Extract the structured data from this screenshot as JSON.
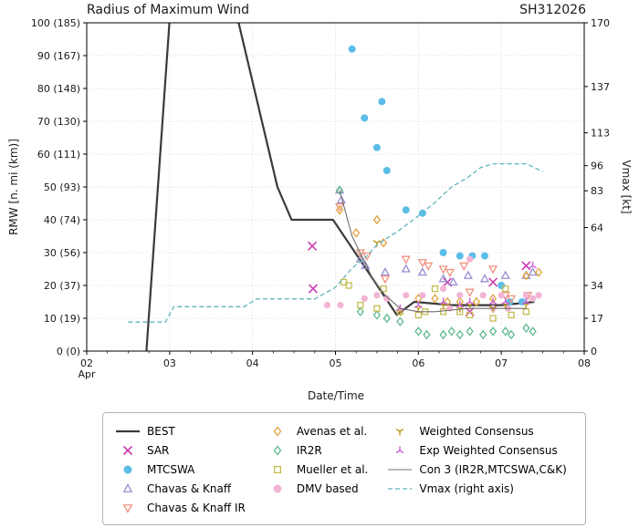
{
  "chart_data": {
    "type": "line+scatter",
    "title": "Radius of Maximum Wind",
    "storm_id": "SH312026",
    "x_axis": {
      "label": "Date/Time",
      "month_label": "Apr",
      "range": [
        2,
        8
      ],
      "ticks": [
        2,
        3,
        4,
        5,
        6,
        7,
        8
      ],
      "tick_labels": [
        "02",
        "03",
        "04",
        "05",
        "06",
        "07",
        "08"
      ],
      "minor_tick_step": 0.25,
      "grid": true
    },
    "y_left": {
      "label": "RMW [n. mi (km)]",
      "range": [
        0,
        100
      ],
      "ticks": [
        0,
        10,
        20,
        30,
        40,
        50,
        60,
        70,
        80,
        90,
        100
      ],
      "tick_labels": [
        "0 (0)",
        "10 (19)",
        "20 (37)",
        "30 (56)",
        "40 (74)",
        "50 (93)",
        "60 (111)",
        "70 (130)",
        "80 (148)",
        "90 (167)",
        "100 (185)"
      ],
      "grid": true
    },
    "y_right": {
      "label": "Vmax [kt]",
      "range": [
        0,
        170
      ],
      "ticks": [
        0,
        17,
        34,
        64,
        83,
        96,
        113,
        137,
        170
      ],
      "tick_labels": [
        "0",
        "17",
        "34",
        "64",
        "83",
        "96",
        "113",
        "137",
        "170"
      ]
    },
    "series": [
      {
        "name": "BEST",
        "style": "line",
        "axis": "left",
        "color": "#3a3a3a",
        "width": 2.2,
        "points": [
          [
            2.72,
            0
          ],
          [
            3.03,
            112
          ],
          [
            3.72,
            112
          ],
          [
            4.3,
            50
          ],
          [
            4.47,
            40
          ],
          [
            4.97,
            40
          ],
          [
            5.45,
            22
          ],
          [
            5.74,
            11
          ],
          [
            5.95,
            15
          ],
          [
            6.4,
            14
          ],
          [
            7.0,
            14
          ],
          [
            7.4,
            15
          ]
        ]
      },
      {
        "name": "SAR",
        "style": "scatter",
        "marker": "x",
        "axis": "left",
        "color": "#cc3bb0",
        "size": 4.5,
        "points": [
          [
            4.72,
            32
          ],
          [
            4.73,
            19
          ],
          [
            6.35,
            21
          ],
          [
            6.62,
            12
          ],
          [
            6.9,
            21
          ],
          [
            7.3,
            26
          ]
        ]
      },
      {
        "name": "MTCSWA",
        "style": "scatter",
        "marker": "circle",
        "axis": "left",
        "color": "#5bbde8",
        "size": 4,
        "points": [
          [
            5.2,
            92
          ],
          [
            5.35,
            71
          ],
          [
            5.5,
            62
          ],
          [
            5.56,
            76
          ],
          [
            5.62,
            55
          ],
          [
            5.85,
            43
          ],
          [
            6.05,
            42
          ],
          [
            6.3,
            30
          ],
          [
            6.5,
            29
          ],
          [
            6.65,
            29
          ],
          [
            6.8,
            29
          ],
          [
            7.0,
            20
          ],
          [
            7.1,
            15
          ],
          [
            7.25,
            15
          ]
        ]
      },
      {
        "name": "Chavas & Knaff",
        "style": "scatter",
        "marker": "triangle-up",
        "axis": "left",
        "color": "#988fd2",
        "size": 4.2,
        "points": [
          [
            5.05,
            49
          ],
          [
            5.07,
            46
          ],
          [
            5.3,
            28
          ],
          [
            5.36,
            26
          ],
          [
            5.6,
            24
          ],
          [
            5.85,
            25
          ],
          [
            6.05,
            24
          ],
          [
            6.3,
            22
          ],
          [
            6.42,
            21
          ],
          [
            6.6,
            23
          ],
          [
            6.8,
            22
          ],
          [
            7.05,
            23
          ],
          [
            7.3,
            23
          ],
          [
            7.38,
            24
          ]
        ]
      },
      {
        "name": "Chavas & Knaff IR",
        "style": "scatter",
        "marker": "triangle-down",
        "axis": "left",
        "color": "#f0917f",
        "size": 4.2,
        "points": [
          [
            5.05,
            44
          ],
          [
            5.3,
            30
          ],
          [
            5.38,
            29
          ],
          [
            5.6,
            22
          ],
          [
            5.85,
            28
          ],
          [
            6.05,
            27
          ],
          [
            6.12,
            26
          ],
          [
            6.3,
            25
          ],
          [
            6.38,
            24
          ],
          [
            6.55,
            26
          ],
          [
            6.62,
            18
          ],
          [
            6.9,
            25
          ],
          [
            7.05,
            17
          ],
          [
            7.12,
            16
          ],
          [
            7.32,
            17
          ]
        ]
      },
      {
        "name": "Avenas et al.",
        "style": "scatter",
        "marker": "diamond",
        "axis": "left",
        "color": "#e2a23b",
        "size": 4.2,
        "points": [
          [
            5.05,
            43
          ],
          [
            5.25,
            36
          ],
          [
            5.5,
            40
          ],
          [
            5.58,
            33
          ],
          [
            6.0,
            16
          ],
          [
            6.2,
            16
          ],
          [
            6.35,
            15
          ],
          [
            6.5,
            15
          ],
          [
            6.7,
            15
          ],
          [
            6.9,
            16
          ],
          [
            7.3,
            23
          ],
          [
            7.45,
            24
          ]
        ]
      },
      {
        "name": "IR2R",
        "style": "scatter",
        "marker": "diamond",
        "axis": "left",
        "color": "#5eb98b",
        "size": 4.2,
        "points": [
          [
            5.05,
            49
          ],
          [
            5.3,
            12
          ],
          [
            5.5,
            11
          ],
          [
            5.62,
            10
          ],
          [
            5.78,
            9
          ],
          [
            6.0,
            6
          ],
          [
            6.1,
            5
          ],
          [
            6.3,
            5
          ],
          [
            6.4,
            6
          ],
          [
            6.5,
            5
          ],
          [
            6.62,
            6
          ],
          [
            6.78,
            5
          ],
          [
            6.9,
            6
          ],
          [
            7.05,
            6
          ],
          [
            7.12,
            5
          ],
          [
            7.3,
            7
          ],
          [
            7.38,
            6
          ]
        ]
      },
      {
        "name": "Mueller et al.",
        "style": "scatter",
        "marker": "square",
        "axis": "left",
        "color": "#c5bc50",
        "size": 4,
        "points": [
          [
            5.1,
            21
          ],
          [
            5.16,
            20
          ],
          [
            5.3,
            14
          ],
          [
            5.5,
            13
          ],
          [
            5.58,
            19
          ],
          [
            5.78,
            12
          ],
          [
            6.0,
            11
          ],
          [
            6.08,
            12
          ],
          [
            6.2,
            19
          ],
          [
            6.3,
            12
          ],
          [
            6.5,
            12
          ],
          [
            6.62,
            11
          ],
          [
            6.9,
            10
          ],
          [
            7.05,
            19
          ],
          [
            7.12,
            11
          ],
          [
            7.3,
            12
          ]
        ]
      },
      {
        "name": "DMV based",
        "style": "scatter",
        "marker": "circle",
        "axis": "left",
        "color": "#f2b4d5",
        "size": 3.6,
        "points": [
          [
            4.9,
            14
          ],
          [
            5.06,
            14
          ],
          [
            5.35,
            16
          ],
          [
            5.5,
            17
          ],
          [
            5.62,
            16
          ],
          [
            5.85,
            17
          ],
          [
            6.05,
            17
          ],
          [
            6.3,
            19
          ],
          [
            6.38,
            13
          ],
          [
            6.5,
            17
          ],
          [
            6.62,
            28
          ],
          [
            6.78,
            17
          ],
          [
            6.9,
            13
          ],
          [
            7.0,
            17
          ],
          [
            7.08,
            13
          ],
          [
            7.3,
            17
          ],
          [
            7.38,
            16
          ],
          [
            7.45,
            17
          ]
        ]
      },
      {
        "name": "Weighted Consensus",
        "style": "scatter",
        "marker": "y-down",
        "axis": "left",
        "color": "#bd9a21",
        "size": 4.5,
        "points": [
          [
            5.5,
            33
          ],
          [
            5.78,
            12
          ],
          [
            6.0,
            13
          ],
          [
            6.3,
            14
          ],
          [
            6.5,
            13
          ],
          [
            6.62,
            14
          ],
          [
            6.9,
            13
          ],
          [
            7.05,
            14
          ],
          [
            7.3,
            14
          ]
        ]
      },
      {
        "name": "Exp Weighted Consensus",
        "style": "scatter",
        "marker": "y-up",
        "axis": "left",
        "color": "#cf63d8",
        "size": 4.5,
        "points": [
          [
            5.78,
            13
          ],
          [
            6.0,
            14
          ],
          [
            6.3,
            15
          ],
          [
            6.5,
            14
          ],
          [
            6.62,
            15
          ],
          [
            6.9,
            15
          ],
          [
            7.05,
            15
          ],
          [
            7.3,
            15
          ],
          [
            7.38,
            26
          ]
        ]
      },
      {
        "name": "Con 3 (IR2R,MTCSWA,C&K)",
        "style": "line",
        "axis": "left",
        "color": "#6f6f6f",
        "width": 1.1,
        "points": [
          [
            5.05,
            49
          ],
          [
            5.2,
            35
          ],
          [
            5.45,
            22
          ],
          [
            5.6,
            17
          ],
          [
            5.78,
            13
          ],
          [
            6.0,
            12
          ],
          [
            6.2,
            12
          ],
          [
            6.4,
            12.5
          ],
          [
            6.6,
            13
          ],
          [
            7.0,
            13
          ],
          [
            7.3,
            13
          ]
        ]
      },
      {
        "name": "Vmax (right axis)",
        "style": "line",
        "axis": "right",
        "color": "#5fb4ba",
        "width": 1.3,
        "dash": "5 3",
        "points": [
          [
            2.5,
            15
          ],
          [
            2.95,
            15
          ],
          [
            3.05,
            23
          ],
          [
            3.9,
            23
          ],
          [
            4.05,
            27
          ],
          [
            4.75,
            27
          ],
          [
            5.0,
            33
          ],
          [
            5.2,
            43
          ],
          [
            5.35,
            48
          ],
          [
            5.5,
            55
          ],
          [
            5.75,
            62
          ],
          [
            6.0,
            70
          ],
          [
            6.2,
            77
          ],
          [
            6.4,
            85
          ],
          [
            6.6,
            90
          ],
          [
            6.75,
            95
          ],
          [
            6.9,
            97
          ],
          [
            7.3,
            97
          ],
          [
            7.5,
            93
          ]
        ]
      }
    ],
    "legend": {
      "columns": [
        [
          0,
          1,
          2,
          3,
          4
        ],
        [
          5,
          6,
          7,
          8
        ],
        [
          9,
          10,
          11,
          12
        ]
      ]
    }
  }
}
